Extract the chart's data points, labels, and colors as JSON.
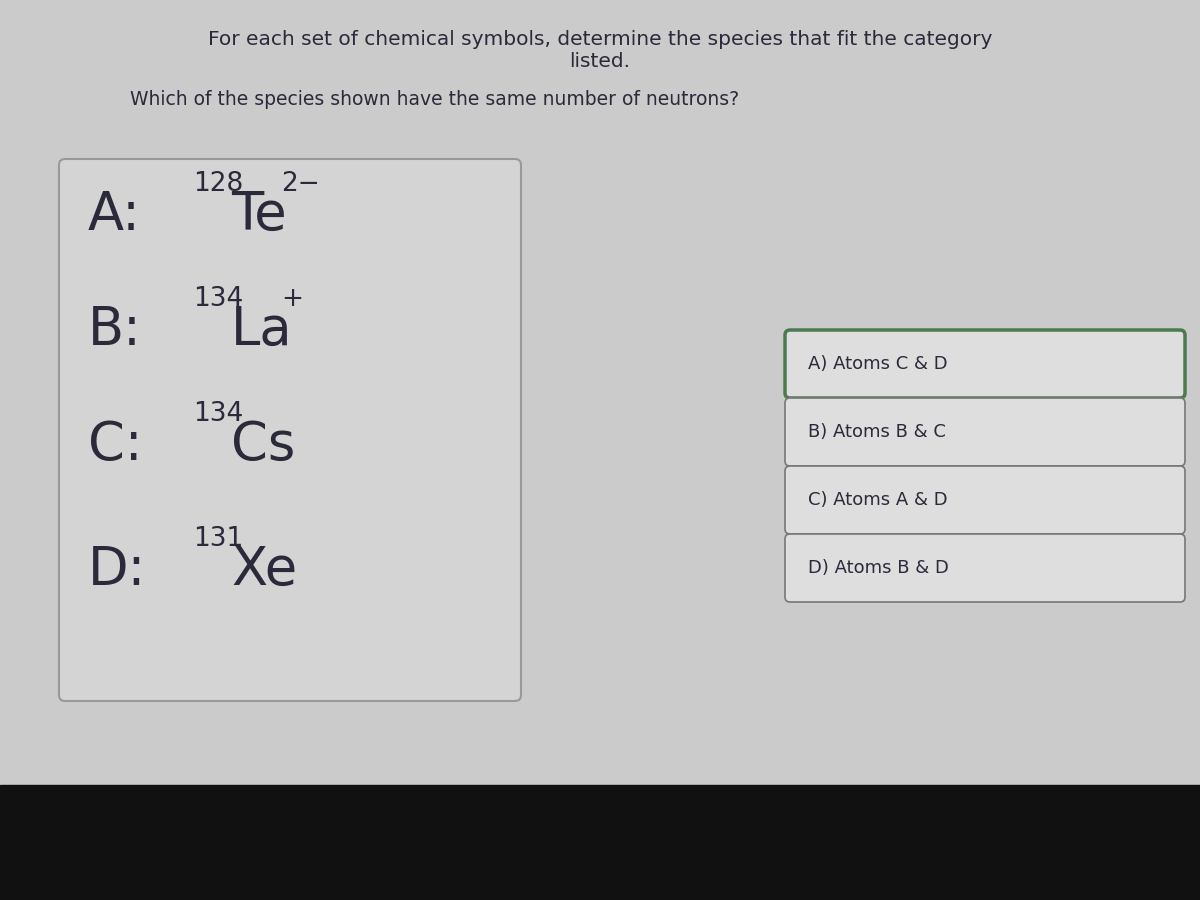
{
  "title_line1": "For each set of chemical symbols, determine the species that fit the category",
  "title_line2": "listed.",
  "question": "Which of the species shown have the same number of neutrons?",
  "bg_color": "#cbcbcb",
  "bottom_bar_color": "#111111",
  "left_box_bg": "#d4d4d4",
  "left_box_border": "#999999",
  "right_box_bg": "#dedede",
  "right_box_border": "#777777",
  "right_box_A_border": "#4a7a4e",
  "text_color": "#2a2a3a",
  "species": [
    {
      "label": "A:",
      "mass": "128",
      "symbol": "Te",
      "superscript": "2−"
    },
    {
      "label": "B:",
      "mass": "134",
      "symbol": "La",
      "superscript": "+"
    },
    {
      "label": "C:",
      "mass": "134",
      "symbol": "Cs",
      "superscript": ""
    },
    {
      "label": "D:",
      "mass": "131",
      "symbol": "Xe",
      "superscript": ""
    }
  ],
  "answers": [
    "A) Atoms C & D",
    "B) Atoms B & C",
    "C) Atoms A & D",
    "D) Atoms B & D"
  ],
  "title_fontsize": 14.5,
  "question_fontsize": 13.5,
  "label_fontsize": 38,
  "symbol_fontsize": 38,
  "mass_fontsize": 19,
  "superscript_fontsize": 19,
  "answer_fontsize": 13
}
